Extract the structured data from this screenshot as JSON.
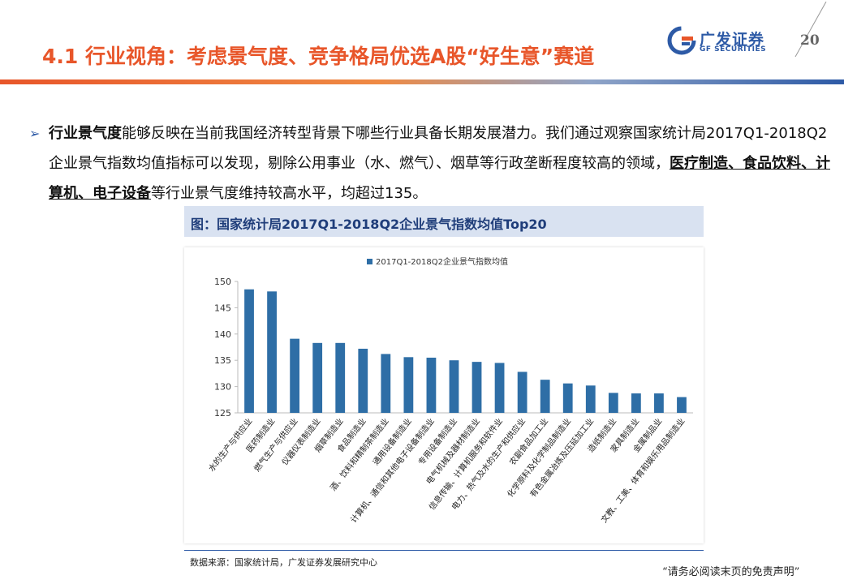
{
  "header": {
    "title": "4.1 行业视角：考虑景气度、竞争格局优选A股“好生意”赛道",
    "logo_cn": "广发证券",
    "logo_en": "GF SECURITIES",
    "page_number": "20"
  },
  "body": {
    "bullet_icon": "arrow-bullet-icon",
    "lead_bold": "行业景气度",
    "text_1": "能够反映在当前我国经济转型背景下哪些行业具备长期发展潜力。我们通过观察国家统计局2017Q1-2018Q2企业景气指数均值指标可以发现，剔除公用事业（水、燃气）、烟草等行政垄断程度较高的领域，",
    "highlight": "医疗制造、食品饮料、计算机、电子设备",
    "text_2": "等行业景气度维持较高水平，均超过135。"
  },
  "chart_title": "图：国家统计局2017Q1-2018Q2企业景气指数均值Top20",
  "chart_data": {
    "type": "bar",
    "title": "",
    "xlabel": "",
    "ylabel": "",
    "legend": {
      "position": "top-center"
    },
    "ylim": [
      125,
      150
    ],
    "yticks": [
      125,
      130,
      135,
      140,
      145,
      150
    ],
    "grid": false,
    "categories": [
      "水的生产与供应业",
      "医药制造业",
      "燃气生产与供应业",
      "仪器仪表制造业",
      "烟草制造业",
      "食品制造业",
      "酒、饮料和精制茶制造业",
      "通用设备制造业",
      "计算机、通信和其他电子设备制造业",
      "专用设备制造业",
      "电气机械及器材制造业",
      "信息传输、计算机服务和软件业",
      "电力、热气及水的生产和供应业",
      "农副食品加工业",
      "化学原料及化学制品制造业",
      "有色金属冶炼及压延加工业",
      "造纸制造业",
      "家具制造业",
      "金属制品业",
      "文教、工美、体育和娱乐用品制造业"
    ],
    "series": [
      {
        "name": "2017Q1-2018Q2企业景气指数均值",
        "color": "#2e6ea6",
        "values": [
          148.5,
          148.1,
          139.1,
          138.3,
          138.3,
          137.2,
          136.2,
          135.6,
          135.5,
          135.0,
          134.7,
          134.5,
          132.8,
          131.3,
          130.6,
          130.2,
          128.8,
          128.7,
          128.7,
          128.0
        ]
      }
    ]
  },
  "source": "数据来源：国家统计局，广发证券发展研究中心",
  "disclaimer": "“请务必阅读末页的免责声明”"
}
